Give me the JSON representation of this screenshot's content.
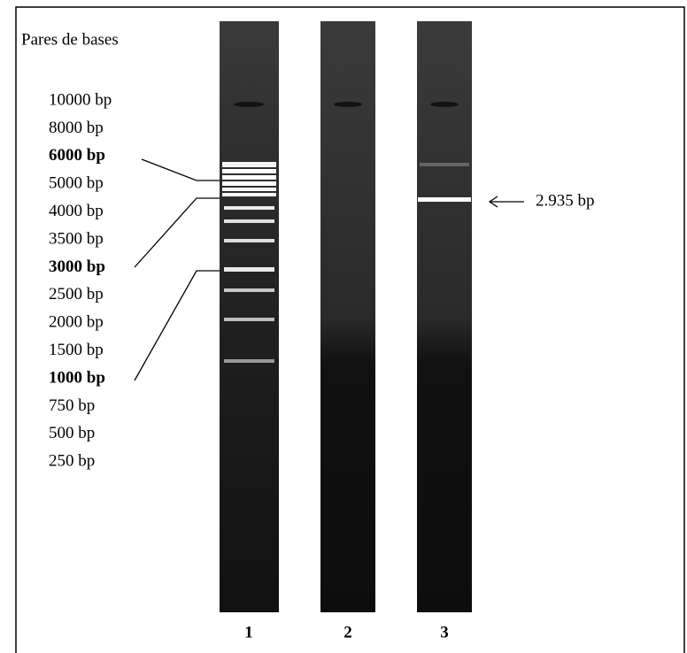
{
  "title": "Pares de bases",
  "ladder": [
    {
      "label": "10000 bp",
      "emphasis": false
    },
    {
      "label": "8000 bp",
      "emphasis": false
    },
    {
      "label": "6000 bp",
      "emphasis": true
    },
    {
      "label": "5000 bp",
      "emphasis": false
    },
    {
      "label": "4000 bp",
      "emphasis": false
    },
    {
      "label": "3500 bp",
      "emphasis": false
    },
    {
      "label": "3000 bp",
      "emphasis": true
    },
    {
      "label": "2500 bp",
      "emphasis": false
    },
    {
      "label": "2000 bp",
      "emphasis": false
    },
    {
      "label": "1500 bp",
      "emphasis": false
    },
    {
      "label": "1000 bp",
      "emphasis": true
    },
    {
      "label": "750 bp",
      "emphasis": false
    },
    {
      "label": "500 bp",
      "emphasis": false
    },
    {
      "label": "250 bp",
      "emphasis": false
    }
  ],
  "lanes": [
    "1",
    "2",
    "3"
  ],
  "annotation": "2.935 bp"
}
